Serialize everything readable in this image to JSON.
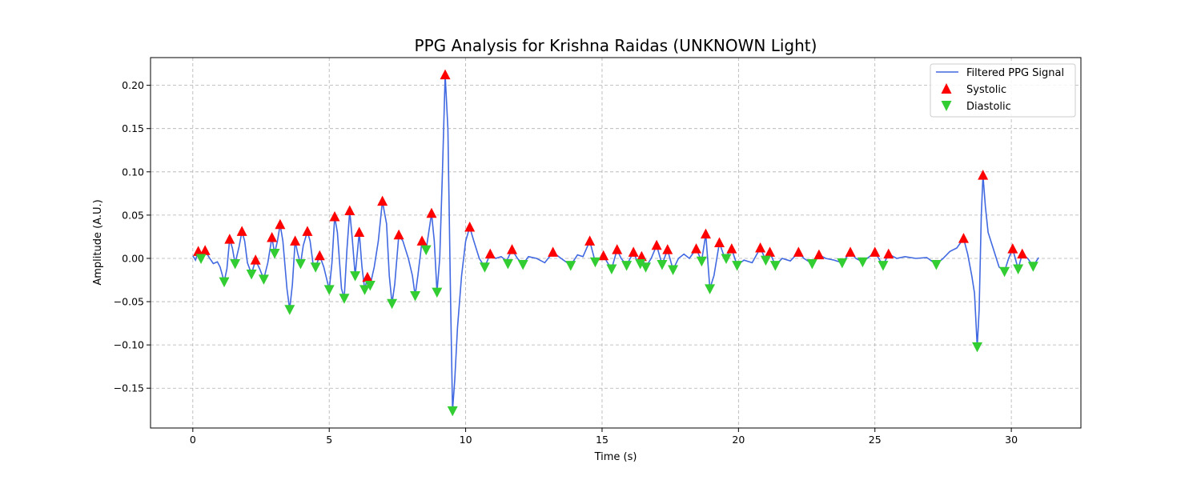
{
  "chart_data": {
    "type": "line",
    "title": "PPG Analysis for Krishna Raidas (UNKNOWN Light)",
    "xlabel": "Time (s)",
    "ylabel": "Amplitude (A.U.)",
    "xlim": [
      -1.55,
      32.55
    ],
    "ylim": [
      -0.196,
      0.232
    ],
    "xticks": [
      0,
      5,
      10,
      15,
      20,
      25,
      30
    ],
    "xtick_labels": [
      "0",
      "5",
      "10",
      "15",
      "20",
      "25",
      "30"
    ],
    "yticks": [
      -0.15,
      -0.1,
      -0.05,
      0.0,
      0.05,
      0.1,
      0.15,
      0.2
    ],
    "ytick_labels": [
      "−0.15",
      "−0.10",
      "−0.05",
      "0.00",
      "0.05",
      "0.10",
      "0.15",
      "0.20"
    ],
    "grid": true,
    "legend": "top-right",
    "colors": {
      "signal": "#4169e1",
      "systolic": "#ff0000",
      "diastolic": "#32cd32"
    },
    "series": [
      {
        "name": "Filtered PPG Signal",
        "kind": "line",
        "points": [
          [
            0,
            0.003
          ],
          [
            0.1,
            -0.002
          ],
          [
            0.2,
            0.008
          ],
          [
            0.3,
            0.0
          ],
          [
            0.45,
            0.009
          ],
          [
            0.6,
            0.001
          ],
          [
            0.75,
            -0.006
          ],
          [
            0.9,
            -0.004
          ],
          [
            1.0,
            -0.01
          ],
          [
            1.15,
            -0.027
          ],
          [
            1.25,
            -0.012
          ],
          [
            1.35,
            0.022
          ],
          [
            1.45,
            0.012
          ],
          [
            1.55,
            -0.006
          ],
          [
            1.7,
            0.014
          ],
          [
            1.8,
            0.031
          ],
          [
            1.9,
            0.02
          ],
          [
            2.0,
            -0.005
          ],
          [
            2.15,
            -0.018
          ],
          [
            2.3,
            -0.002
          ],
          [
            2.45,
            -0.012
          ],
          [
            2.6,
            -0.024
          ],
          [
            2.75,
            -0.005
          ],
          [
            2.9,
            0.024
          ],
          [
            3.0,
            0.006
          ],
          [
            3.1,
            0.02
          ],
          [
            3.2,
            0.039
          ],
          [
            3.3,
            0.02
          ],
          [
            3.45,
            -0.035
          ],
          [
            3.55,
            -0.059
          ],
          [
            3.65,
            -0.03
          ],
          [
            3.75,
            0.02
          ],
          [
            3.85,
            0.005
          ],
          [
            3.95,
            -0.006
          ],
          [
            4.05,
            0.015
          ],
          [
            4.2,
            0.031
          ],
          [
            4.3,
            0.02
          ],
          [
            4.4,
            -0.005
          ],
          [
            4.5,
            -0.01
          ],
          [
            4.65,
            0.003
          ],
          [
            4.8,
            -0.01
          ],
          [
            5.0,
            -0.036
          ],
          [
            5.1,
            -0.005
          ],
          [
            5.2,
            0.048
          ],
          [
            5.3,
            0.03
          ],
          [
            5.45,
            -0.035
          ],
          [
            5.55,
            -0.046
          ],
          [
            5.65,
            0.01
          ],
          [
            5.75,
            0.055
          ],
          [
            5.85,
            0.02
          ],
          [
            5.95,
            -0.02
          ],
          [
            6.1,
            0.03
          ],
          [
            6.2,
            -0.01
          ],
          [
            6.3,
            -0.036
          ],
          [
            6.4,
            -0.022
          ],
          [
            6.5,
            -0.031
          ],
          [
            6.65,
            -0.01
          ],
          [
            6.8,
            0.02
          ],
          [
            6.95,
            0.066
          ],
          [
            7.1,
            0.04
          ],
          [
            7.2,
            -0.02
          ],
          [
            7.3,
            -0.052
          ],
          [
            7.4,
            -0.03
          ],
          [
            7.55,
            0.027
          ],
          [
            7.7,
            0.02
          ],
          [
            7.9,
            0.0
          ],
          [
            8.05,
            -0.02
          ],
          [
            8.15,
            -0.043
          ],
          [
            8.25,
            -0.02
          ],
          [
            8.4,
            0.02
          ],
          [
            8.55,
            0.01
          ],
          [
            8.75,
            0.052
          ],
          [
            8.85,
            0.02
          ],
          [
            8.95,
            -0.039
          ],
          [
            9.05,
            0.0
          ],
          [
            9.15,
            0.1
          ],
          [
            9.25,
            0.212
          ],
          [
            9.35,
            0.15
          ],
          [
            9.45,
            -0.05
          ],
          [
            9.52,
            -0.176
          ],
          [
            9.6,
            -0.14
          ],
          [
            9.7,
            -0.08
          ],
          [
            9.85,
            -0.02
          ],
          [
            10.0,
            0.02
          ],
          [
            10.15,
            0.036
          ],
          [
            10.3,
            0.02
          ],
          [
            10.5,
            0.0
          ],
          [
            10.7,
            -0.01
          ],
          [
            10.9,
            0.005
          ],
          [
            11.1,
            0.0
          ],
          [
            11.3,
            0.002
          ],
          [
            11.5,
            -0.003
          ],
          [
            11.7,
            0.01
          ],
          [
            11.9,
            0.0
          ],
          [
            12.1,
            -0.007
          ],
          [
            12.3,
            0.002
          ],
          [
            12.6,
            0.0
          ],
          [
            12.9,
            -0.005
          ],
          [
            13.2,
            0.007
          ],
          [
            13.5,
            0.0
          ],
          [
            13.85,
            -0.008
          ],
          [
            14.1,
            0.004
          ],
          [
            14.3,
            0.002
          ],
          [
            14.55,
            0.02
          ],
          [
            14.75,
            -0.004
          ],
          [
            14.9,
            0.0
          ],
          [
            15.05,
            0.003
          ],
          [
            15.2,
            -0.005
          ],
          [
            15.35,
            -0.012
          ],
          [
            15.55,
            0.01
          ],
          [
            15.7,
            0.0
          ],
          [
            15.9,
            -0.008
          ],
          [
            16.15,
            0.007
          ],
          [
            16.3,
            -0.004
          ],
          [
            16.45,
            0.002
          ],
          [
            16.6,
            -0.01
          ],
          [
            16.8,
            0.0
          ],
          [
            17.0,
            0.015
          ],
          [
            17.2,
            -0.007
          ],
          [
            17.4,
            0.01
          ],
          [
            17.6,
            -0.013
          ],
          [
            17.8,
            0.0
          ],
          [
            18.0,
            0.005
          ],
          [
            18.2,
            0.0
          ],
          [
            18.45,
            0.011
          ],
          [
            18.65,
            -0.003
          ],
          [
            18.8,
            0.028
          ],
          [
            18.95,
            -0.035
          ],
          [
            19.1,
            -0.02
          ],
          [
            19.3,
            0.018
          ],
          [
            19.5,
            0.0
          ],
          [
            19.75,
            0.011
          ],
          [
            19.95,
            -0.008
          ],
          [
            20.2,
            -0.002
          ],
          [
            20.5,
            -0.005
          ],
          [
            20.8,
            0.012
          ],
          [
            21.0,
            -0.002
          ],
          [
            21.15,
            0.007
          ],
          [
            21.35,
            -0.008
          ],
          [
            21.6,
            0.0
          ],
          [
            21.9,
            -0.003
          ],
          [
            22.2,
            0.007
          ],
          [
            22.4,
            0.0
          ],
          [
            22.7,
            -0.006
          ],
          [
            22.95,
            0.004
          ],
          [
            23.2,
            0.0
          ],
          [
            23.5,
            -0.002
          ],
          [
            23.8,
            -0.005
          ],
          [
            24.1,
            0.007
          ],
          [
            24.3,
            0.0
          ],
          [
            24.55,
            -0.004
          ],
          [
            24.8,
            0.002
          ],
          [
            25.0,
            0.007
          ],
          [
            25.3,
            -0.008
          ],
          [
            25.5,
            0.005
          ],
          [
            25.8,
            0.0
          ],
          [
            26.1,
            0.002
          ],
          [
            26.5,
            0.0
          ],
          [
            26.9,
            0.001
          ],
          [
            27.25,
            -0.007
          ],
          [
            27.5,
            0.0
          ],
          [
            27.75,
            0.008
          ],
          [
            28.0,
            0.012
          ],
          [
            28.25,
            0.023
          ],
          [
            28.4,
            0.005
          ],
          [
            28.55,
            -0.02
          ],
          [
            28.65,
            -0.04
          ],
          [
            28.75,
            -0.102
          ],
          [
            28.82,
            -0.06
          ],
          [
            28.9,
            0.05
          ],
          [
            28.96,
            0.096
          ],
          [
            29.05,
            0.06
          ],
          [
            29.15,
            0.03
          ],
          [
            29.35,
            0.01
          ],
          [
            29.55,
            -0.01
          ],
          [
            29.75,
            -0.015
          ],
          [
            29.9,
            0.0
          ],
          [
            30.05,
            0.011
          ],
          [
            30.25,
            -0.012
          ],
          [
            30.4,
            0.005
          ],
          [
            30.6,
            0.0
          ],
          [
            30.8,
            -0.009
          ],
          [
            31.0,
            0.001
          ]
        ]
      },
      {
        "name": "Systolic",
        "kind": "marker-up",
        "points": [
          [
            0.2,
            0.008
          ],
          [
            0.45,
            0.009
          ],
          [
            1.35,
            0.022
          ],
          [
            1.8,
            0.031
          ],
          [
            2.3,
            -0.002
          ],
          [
            2.9,
            0.024
          ],
          [
            3.2,
            0.039
          ],
          [
            3.75,
            0.02
          ],
          [
            4.2,
            0.031
          ],
          [
            4.65,
            0.003
          ],
          [
            5.2,
            0.048
          ],
          [
            5.75,
            0.055
          ],
          [
            6.1,
            0.03
          ],
          [
            6.4,
            -0.022
          ],
          [
            6.95,
            0.066
          ],
          [
            7.55,
            0.027
          ],
          [
            8.4,
            0.02
          ],
          [
            8.75,
            0.052
          ],
          [
            9.25,
            0.212
          ],
          [
            10.15,
            0.036
          ],
          [
            10.9,
            0.005
          ],
          [
            11.7,
            0.01
          ],
          [
            13.2,
            0.007
          ],
          [
            14.55,
            0.02
          ],
          [
            15.05,
            0.003
          ],
          [
            15.55,
            0.01
          ],
          [
            16.15,
            0.007
          ],
          [
            16.45,
            0.002
          ],
          [
            17.0,
            0.015
          ],
          [
            17.4,
            0.01
          ],
          [
            18.45,
            0.011
          ],
          [
            18.8,
            0.028
          ],
          [
            19.3,
            0.018
          ],
          [
            19.75,
            0.011
          ],
          [
            20.8,
            0.012
          ],
          [
            21.15,
            0.007
          ],
          [
            22.2,
            0.007
          ],
          [
            22.95,
            0.004
          ],
          [
            24.1,
            0.007
          ],
          [
            25.0,
            0.007
          ],
          [
            25.5,
            0.005
          ],
          [
            28.25,
            0.023
          ],
          [
            28.96,
            0.096
          ],
          [
            30.05,
            0.011
          ],
          [
            30.4,
            0.005
          ]
        ]
      },
      {
        "name": "Diastolic",
        "kind": "marker-down",
        "points": [
          [
            0.3,
            0.0
          ],
          [
            1.15,
            -0.027
          ],
          [
            1.55,
            -0.006
          ],
          [
            2.15,
            -0.018
          ],
          [
            2.6,
            -0.024
          ],
          [
            3.0,
            0.006
          ],
          [
            3.55,
            -0.059
          ],
          [
            3.95,
            -0.006
          ],
          [
            4.5,
            -0.01
          ],
          [
            5.0,
            -0.036
          ],
          [
            5.55,
            -0.046
          ],
          [
            5.95,
            -0.02
          ],
          [
            6.3,
            -0.036
          ],
          [
            6.5,
            -0.031
          ],
          [
            7.3,
            -0.052
          ],
          [
            8.15,
            -0.043
          ],
          [
            8.55,
            0.01
          ],
          [
            8.95,
            -0.039
          ],
          [
            9.52,
            -0.176
          ],
          [
            10.7,
            -0.01
          ],
          [
            11.55,
            -0.006
          ],
          [
            12.1,
            -0.007
          ],
          [
            13.85,
            -0.008
          ],
          [
            14.75,
            -0.004
          ],
          [
            15.35,
            -0.012
          ],
          [
            15.9,
            -0.008
          ],
          [
            16.4,
            -0.006
          ],
          [
            16.6,
            -0.01
          ],
          [
            17.2,
            -0.007
          ],
          [
            17.6,
            -0.013
          ],
          [
            18.65,
            -0.003
          ],
          [
            18.95,
            -0.035
          ],
          [
            19.55,
            0.0
          ],
          [
            19.95,
            -0.008
          ],
          [
            21.0,
            -0.002
          ],
          [
            21.35,
            -0.008
          ],
          [
            22.7,
            -0.006
          ],
          [
            23.8,
            -0.005
          ],
          [
            24.55,
            -0.004
          ],
          [
            25.3,
            -0.008
          ],
          [
            27.25,
            -0.007
          ],
          [
            28.75,
            -0.102
          ],
          [
            29.75,
            -0.015
          ],
          [
            30.25,
            -0.012
          ],
          [
            30.8,
            -0.009
          ]
        ]
      }
    ]
  }
}
